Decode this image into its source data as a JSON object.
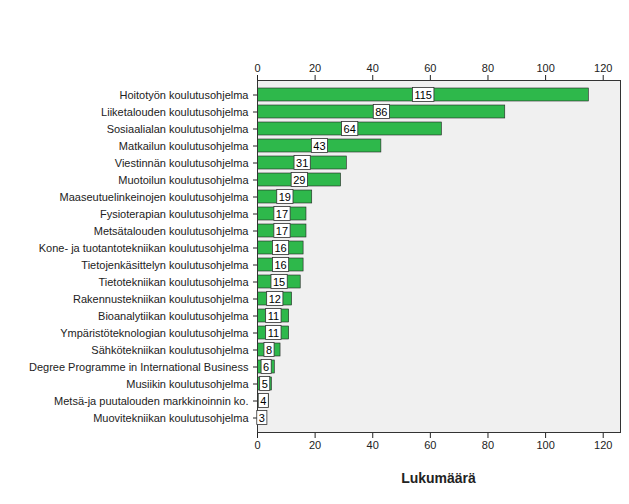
{
  "chart_data": {
    "type": "bar",
    "orientation": "horizontal",
    "x_label": "Lukumäärä",
    "categories": [
      "Hoitotyön koulutusohjelma",
      "Liiketalouden koulutusohjelma",
      "Sosiaalialan koulutusohjelma",
      "Matkailun koulutusohjelma",
      "Viestinnän koulutusohjelma",
      "Muotoilun koulutusohjelma",
      "Maaseutuelinkeinojen koulutusohjelma",
      "Fysioterapian koulutusohjelma",
      "Metsätalouden koulutusohjelma",
      "Kone- ja tuotantotekniikan koulutusohjelma",
      "Tietojenkäsittelyn koulutusohjelma",
      "Tietotekniikan koulutusohjelma",
      "Rakennustekniikan koulutusohjelma",
      "Bioanalytiikan koulutusohjelma",
      "Ympäristöteknologian koulutusohjelma",
      "Sähkötekniikan koulutusohjelma",
      "Degree Programme in International Business",
      "Musiikin koulutusohjelma",
      "Metsä-ja puutalouden markkinoinnin ko.",
      "Muovitekniikan koulutusohjelma"
    ],
    "values": [
      115,
      86,
      64,
      43,
      31,
      29,
      19,
      17,
      17,
      16,
      16,
      15,
      12,
      11,
      11,
      8,
      6,
      5,
      4,
      3
    ],
    "color": "#2eb84b",
    "xlim": [
      0,
      126
    ],
    "xticks": [
      0,
      20,
      40,
      60,
      80,
      100,
      120
    ],
    "grid": false,
    "data_labels": true
  }
}
